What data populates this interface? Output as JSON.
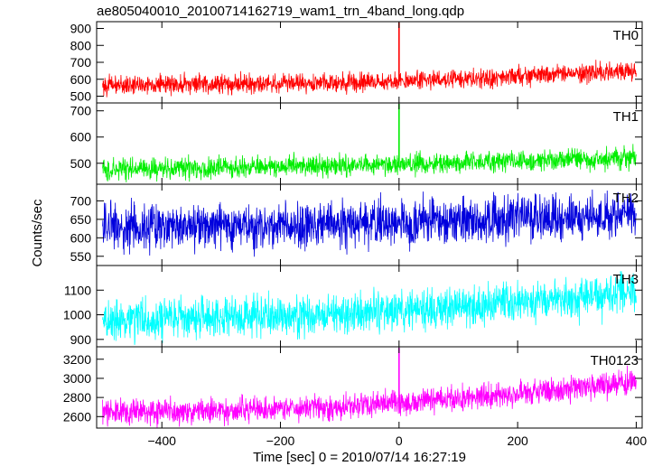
{
  "chart_data": {
    "type": "line",
    "title": "ae805040010_20100714162719_wam1_trn_4band_long.qdp",
    "xlabel": "Time [sec] 0 = 2010/07/14 16:27:19",
    "ylabel": "Counts/sec",
    "xlim": [
      -510,
      410
    ],
    "x_ticks": [
      "−400",
      "−200",
      "0",
      "200",
      "400"
    ],
    "x_tick_values": [
      -400,
      -200,
      0,
      200,
      400
    ],
    "panels": [
      {
        "name": "TH0",
        "color": "#ff0000",
        "ylim": [
          460,
          940
        ],
        "y_ticks": [
          500,
          600,
          700,
          800,
          900
        ],
        "trend": [
          [
            -500,
            565
          ],
          [
            -300,
            575
          ],
          [
            -100,
            580
          ],
          [
            100,
            600
          ],
          [
            300,
            635
          ],
          [
            400,
            650
          ]
        ],
        "noise": 28,
        "spike": {
          "x": 0,
          "y": 940
        }
      },
      {
        "name": "TH1",
        "color": "#00ee00",
        "ylim": [
          420,
          730
        ],
        "y_ticks": [
          500,
          600,
          700
        ],
        "trend": [
          [
            -500,
            475
          ],
          [
            -300,
            485
          ],
          [
            -100,
            490
          ],
          [
            100,
            500
          ],
          [
            300,
            515
          ],
          [
            400,
            520
          ]
        ],
        "noise": 20,
        "spike": {
          "x": 0,
          "y": 730
        }
      },
      {
        "name": "TH2",
        "color": "#0000dd",
        "ylim": [
          525,
          745
        ],
        "y_ticks": [
          550,
          600,
          650,
          700
        ],
        "trend": [
          [
            -500,
            625
          ],
          [
            -300,
            630
          ],
          [
            -100,
            635
          ],
          [
            100,
            645
          ],
          [
            300,
            660
          ],
          [
            400,
            665
          ]
        ],
        "noise": 30,
        "spike": null
      },
      {
        "name": "TH3",
        "color": "#00ffff",
        "ylim": [
          870,
          1200
        ],
        "y_ticks": [
          900,
          1000,
          1100
        ],
        "trend": [
          [
            -500,
            975
          ],
          [
            -300,
            990
          ],
          [
            -100,
            1005
          ],
          [
            100,
            1030
          ],
          [
            300,
            1070
          ],
          [
            400,
            1090
          ]
        ],
        "noise": 42,
        "spike": null
      },
      {
        "name": "TH0123",
        "color": "#ff00ff",
        "ylim": [
          2480,
          3330
        ],
        "y_ticks": [
          2600,
          2800,
          3000,
          3200
        ],
        "trend": [
          [
            -500,
            2645
          ],
          [
            -300,
            2660
          ],
          [
            -100,
            2700
          ],
          [
            100,
            2790
          ],
          [
            300,
            2900
          ],
          [
            400,
            2970
          ]
        ],
        "noise": 65,
        "spike": {
          "x": 0,
          "y": 3330
        }
      }
    ]
  }
}
